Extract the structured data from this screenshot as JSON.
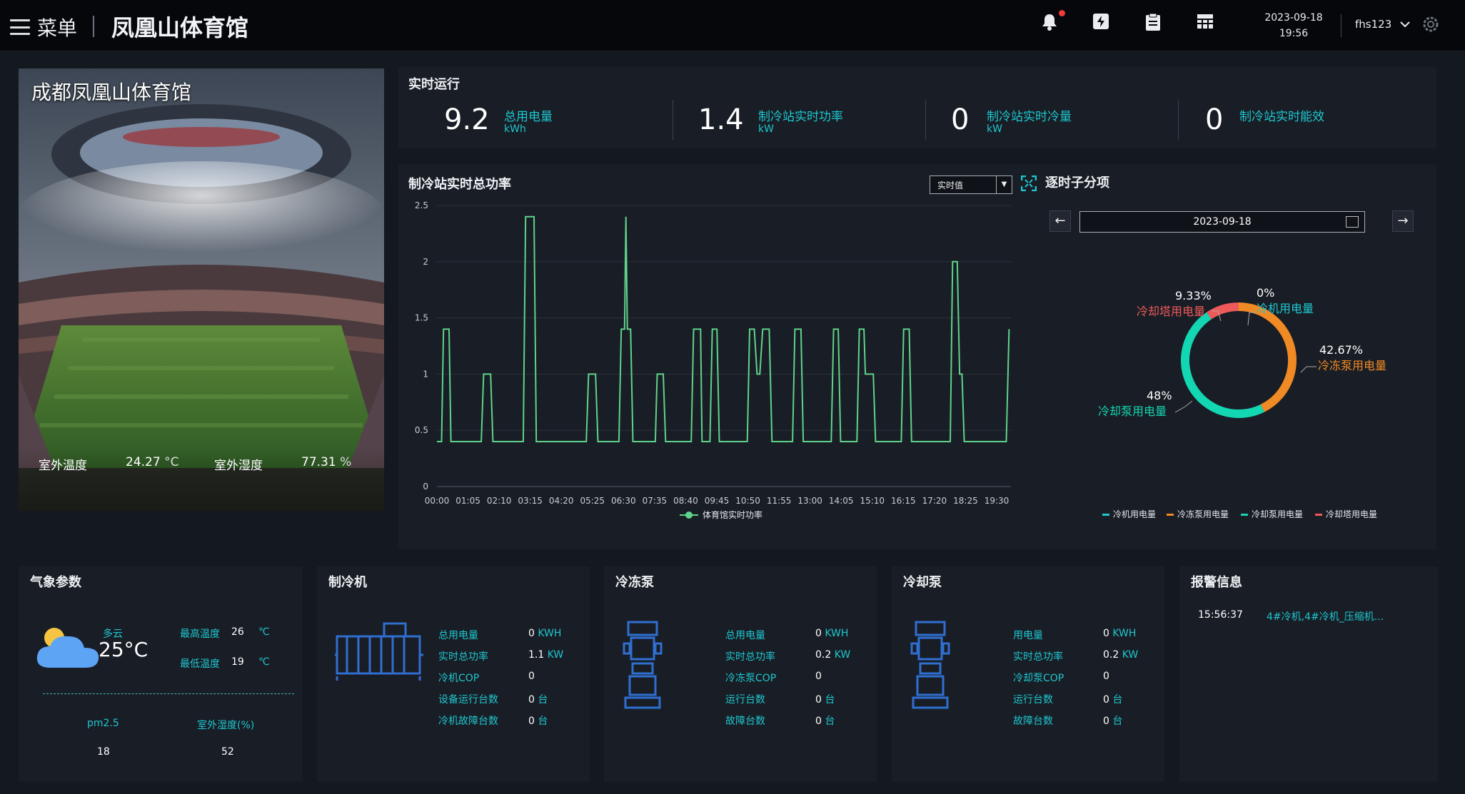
{
  "header": {
    "menu_label": "菜单",
    "title": "凤凰山体育馆",
    "date": "2023-09-18",
    "time": "19:56",
    "username": "fhs123"
  },
  "stadium": {
    "title": "成都凤凰山体育馆",
    "outdoor_temp_label": "室外温度",
    "outdoor_temp_value": "24.27",
    "outdoor_temp_unit": "°C",
    "outdoor_humidity_label": "室外湿度",
    "outdoor_humidity_value": "77.31",
    "outdoor_humidity_unit": "%"
  },
  "realtime": {
    "title": "实时运行",
    "stats": [
      {
        "value": "9.2",
        "label": "总用电量",
        "unit": "kWh"
      },
      {
        "value": "1.4",
        "label": "制冷站实时功率",
        "unit": "kW"
      },
      {
        "value": "0",
        "label": "制冷站实时冷量",
        "unit": "kW"
      },
      {
        "value": "0",
        "label": "制冷站实时能效",
        "unit": ""
      }
    ]
  },
  "power_chart": {
    "title": "制冷站实时总功率",
    "select_value": "实时值",
    "legend": "体育馆实时功率"
  },
  "chart_data": [
    {
      "type": "line",
      "ylim": [
        0,
        2.5
      ],
      "y_ticks": [
        "0",
        "0.5",
        "1",
        "1.5",
        "2",
        "2.5"
      ],
      "x_ticks": [
        "00:00",
        "01:05",
        "02:10",
        "03:15",
        "04:20",
        "05:25",
        "06:30",
        "07:35",
        "08:40",
        "09:45",
        "10:50",
        "11:55",
        "13:00",
        "14:05",
        "15:10",
        "16:15",
        "17:20",
        "18:25",
        "19:30"
      ],
      "x_range_minutes": [
        0,
        1230
      ],
      "series": [
        {
          "name": "体育馆实时功率",
          "color": "#5fd48a",
          "points": [
            [
              0,
              0.4
            ],
            [
              10,
              0.4
            ],
            [
              14,
              1.4
            ],
            [
              26,
              1.4
            ],
            [
              30,
              0.4
            ],
            [
              95,
              0.4
            ],
            [
              100,
              1.0
            ],
            [
              115,
              1.0
            ],
            [
              120,
              0.4
            ],
            [
              185,
              0.4
            ],
            [
              190,
              2.4
            ],
            [
              208,
              2.4
            ],
            [
              213,
              0.4
            ],
            [
              320,
              0.4
            ],
            [
              325,
              1.0
            ],
            [
              340,
              1.0
            ],
            [
              345,
              0.4
            ],
            [
              390,
              0.4
            ],
            [
              395,
              1.4
            ],
            [
              402,
              1.4
            ],
            [
              405,
              2.4
            ],
            [
              408,
              1.4
            ],
            [
              415,
              1.4
            ],
            [
              420,
              0.4
            ],
            [
              468,
              0.4
            ],
            [
              472,
              1.0
            ],
            [
              485,
              1.0
            ],
            [
              490,
              0.4
            ],
            [
              545,
              0.4
            ],
            [
              550,
              1.4
            ],
            [
              565,
              1.4
            ],
            [
              568,
              0.4
            ],
            [
              585,
              0.4
            ],
            [
              590,
              1.4
            ],
            [
              600,
              1.4
            ],
            [
              605,
              0.4
            ],
            [
              665,
              0.4
            ],
            [
              670,
              1.4
            ],
            [
              680,
              1.4
            ],
            [
              686,
              1.0
            ],
            [
              692,
              1.0
            ],
            [
              698,
              1.4
            ],
            [
              712,
              1.4
            ],
            [
              718,
              0.4
            ],
            [
              762,
              0.4
            ],
            [
              767,
              1.4
            ],
            [
              780,
              1.4
            ],
            [
              785,
              0.4
            ],
            [
              845,
              0.4
            ],
            [
              850,
              1.4
            ],
            [
              860,
              1.4
            ],
            [
              865,
              0.4
            ],
            [
              900,
              0.4
            ],
            [
              905,
              1.4
            ],
            [
              915,
              1.4
            ],
            [
              918,
              1.0
            ],
            [
              935,
              1.0
            ],
            [
              940,
              0.4
            ],
            [
              995,
              0.4
            ],
            [
              1000,
              1.4
            ],
            [
              1012,
              1.4
            ],
            [
              1017,
              0.4
            ],
            [
              1100,
              0.4
            ],
            [
              1105,
              2.0
            ],
            [
              1115,
              2.0
            ],
            [
              1120,
              1.0
            ],
            [
              1125,
              1.0
            ],
            [
              1130,
              0.4
            ],
            [
              1220,
              0.4
            ],
            [
              1226,
              1.4
            ]
          ]
        }
      ]
    },
    {
      "type": "pie",
      "title": "逐时子分项",
      "date": "2023-09-18",
      "slices": [
        {
          "label": "冷机用电量",
          "value": 0,
          "percent": "0%",
          "color": "#1ec7d0"
        },
        {
          "label": "冷冻泵用电量",
          "value": 42.67,
          "percent": "42.67%",
          "color": "#f08a24"
        },
        {
          "label": "冷却泵用电量",
          "value": 48,
          "percent": "48%",
          "color": "#13d6b2"
        },
        {
          "label": "冷却塔用电量",
          "value": 9.33,
          "percent": "9.33%",
          "color": "#ee5a5a"
        }
      ]
    }
  ],
  "weather": {
    "title": "气象参数",
    "condition": "多云",
    "temperature": "25",
    "temperature_unit": "°C",
    "high_label": "最高温度",
    "high_value": "26",
    "high_unit": "℃",
    "low_label": "最低温度",
    "low_value": "19",
    "low_unit": "℃",
    "pm25_label": "pm2.5",
    "pm25_value": "18",
    "humidity_label": "室外湿度(%)",
    "humidity_value": "52"
  },
  "chiller": {
    "title": "制冷机",
    "rows": [
      {
        "label": "总用电量",
        "value": "0",
        "unit": "KWH"
      },
      {
        "label": "实时总功率",
        "value": "1.1",
        "unit": "KW"
      },
      {
        "label": "冷机COP",
        "value": "0",
        "unit": ""
      },
      {
        "label": "设备运行台数",
        "value": "0",
        "unit": "台"
      },
      {
        "label": "冷机故障台数",
        "value": "0",
        "unit": "台"
      }
    ]
  },
  "chilled_pump": {
    "title": "冷冻泵",
    "rows": [
      {
        "label": "总用电量",
        "value": "0",
        "unit": "KWH"
      },
      {
        "label": "实时总功率",
        "value": "0.2",
        "unit": "KW"
      },
      {
        "label": "冷冻泵COP",
        "value": "0",
        "unit": ""
      },
      {
        "label": "运行台数",
        "value": "0",
        "unit": "台"
      },
      {
        "label": "故障台数",
        "value": "0",
        "unit": "台"
      }
    ]
  },
  "cooling_pump": {
    "title": "冷却泵",
    "rows": [
      {
        "label": "用电量",
        "value": "0",
        "unit": "KWH"
      },
      {
        "label": "实时总功率",
        "value": "0.2",
        "unit": "KW"
      },
      {
        "label": "冷却泵COP",
        "value": "0",
        "unit": ""
      },
      {
        "label": "运行台数",
        "value": "0",
        "unit": "台"
      },
      {
        "label": "故障台数",
        "value": "0",
        "unit": "台"
      }
    ]
  },
  "alarm": {
    "title": "报警信息",
    "items": [
      {
        "time": "15:56:37",
        "text": "4#冷机,4#冷机_压缩机..."
      }
    ]
  }
}
